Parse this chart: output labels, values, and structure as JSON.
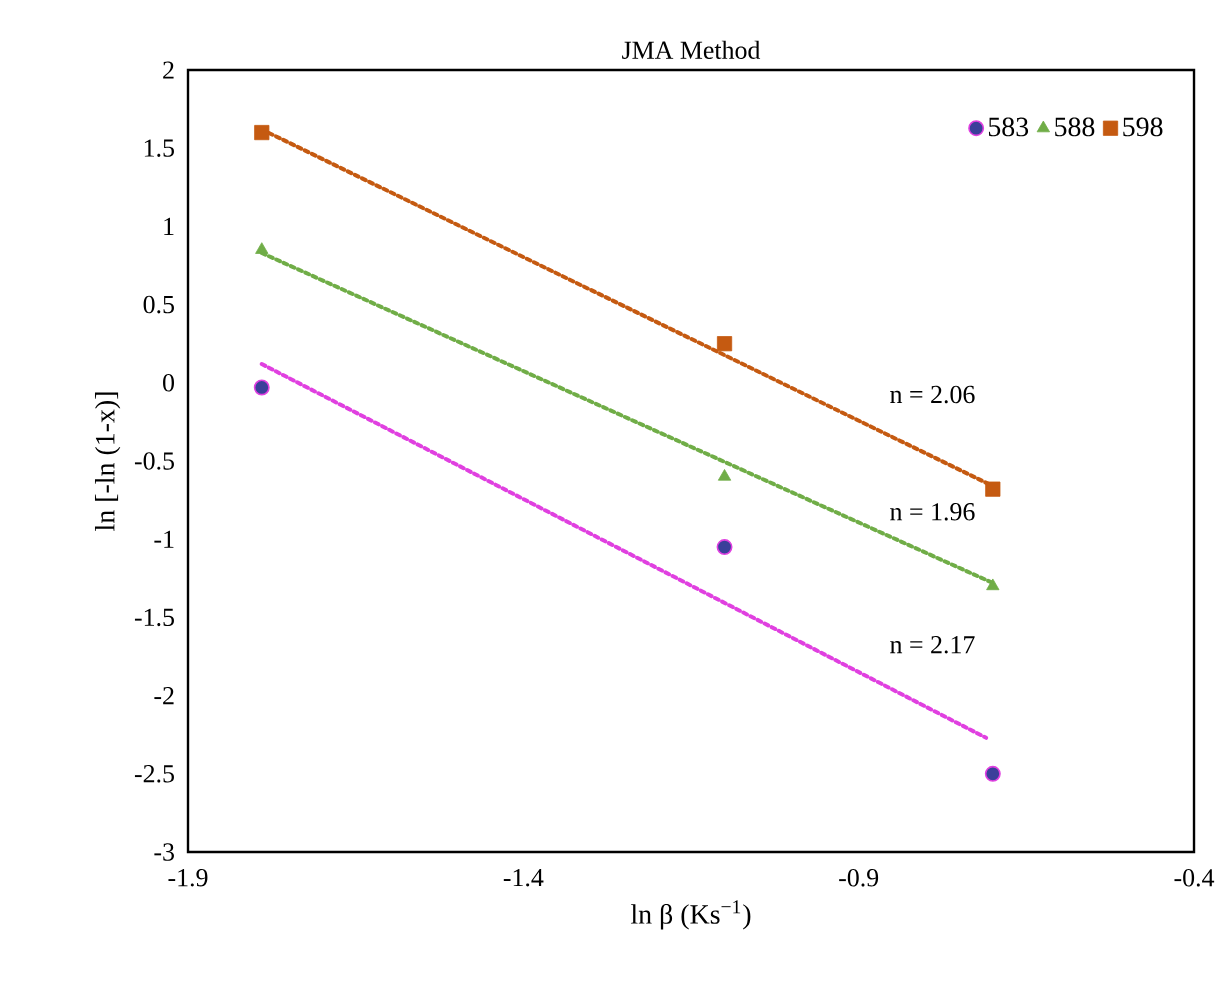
{
  "chart_data": {
    "type": "scatter",
    "title": "JMA Method",
    "xlabel": "ln β (Ks$^{−1}$)",
    "ylabel": "ln [-ln (1-x)]",
    "xlim": [
      -1.9,
      -0.4
    ],
    "ylim": [
      -3,
      2
    ],
    "xticks": [
      -1.9,
      -1.4,
      -0.9,
      -0.4
    ],
    "yticks": [
      -3,
      -2.5,
      -2,
      -1.5,
      -1,
      -0.5,
      0,
      0.5,
      1,
      1.5,
      2
    ],
    "legend": "top right",
    "series": [
      {
        "name": "583",
        "marker": "circle",
        "color": "#3a3f9a",
        "x": [
          -1.79,
          -1.1,
          -0.7
        ],
        "values": [
          -0.03,
          -1.05,
          -2.5
        ]
      },
      {
        "name": "588",
        "marker": "triangle",
        "color": "#70ad47",
        "x": [
          -1.79,
          -1.1,
          -0.7
        ],
        "values": [
          0.85,
          -0.6,
          -1.3
        ]
      },
      {
        "name": "598",
        "marker": "square",
        "color": "#c55a11",
        "x": [
          -1.79,
          -1.1,
          -0.7
        ],
        "values": [
          1.6,
          0.25,
          -0.68
        ]
      },
      {
        "type": "line",
        "line_style": "dotted",
        "color": "#e040e0",
        "x": [
          -1.79,
          -0.71
        ],
        "values": [
          0.12,
          -2.27
        ]
      },
      {
        "type": "line",
        "line_style": "dotted",
        "color": "#70ad47",
        "x": [
          -1.79,
          -0.7
        ],
        "values": [
          0.83,
          -1.28
        ]
      },
      {
        "type": "line",
        "line_style": "dotted",
        "color": "#c55a11",
        "x": [
          -1.79,
          -0.7
        ],
        "values": [
          1.62,
          -0.66
        ]
      }
    ],
    "annotations": [
      "n = 2.06",
      "n = 1.96",
      "n = 2.17"
    ]
  }
}
